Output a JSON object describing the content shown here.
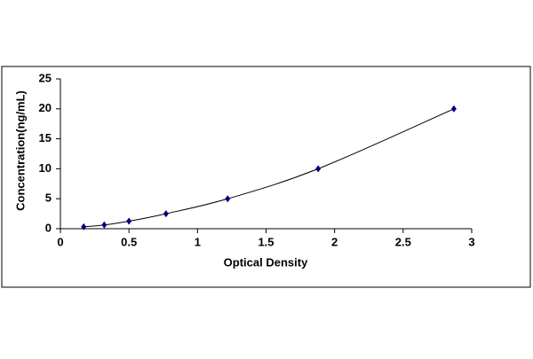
{
  "chart_data": {
    "type": "line",
    "x_label": "Optical Density",
    "y_label": "Concentration(ng/mL)",
    "series": [
      {
        "color": "#000080",
        "x": [
          0.17,
          0.32,
          0.5,
          0.77,
          1.22,
          1.88,
          2.87
        ],
        "values": [
          0.31,
          0.63,
          1.25,
          2.5,
          5,
          10,
          20
        ]
      }
    ],
    "xlim": [
      0,
      3
    ],
    "xticks": [
      0,
      0.5,
      1,
      1.5,
      2,
      2.5,
      3
    ],
    "ylim": [
      0,
      25
    ],
    "yticks": [
      0,
      5,
      10,
      15,
      20,
      25
    ],
    "grid": false
  }
}
